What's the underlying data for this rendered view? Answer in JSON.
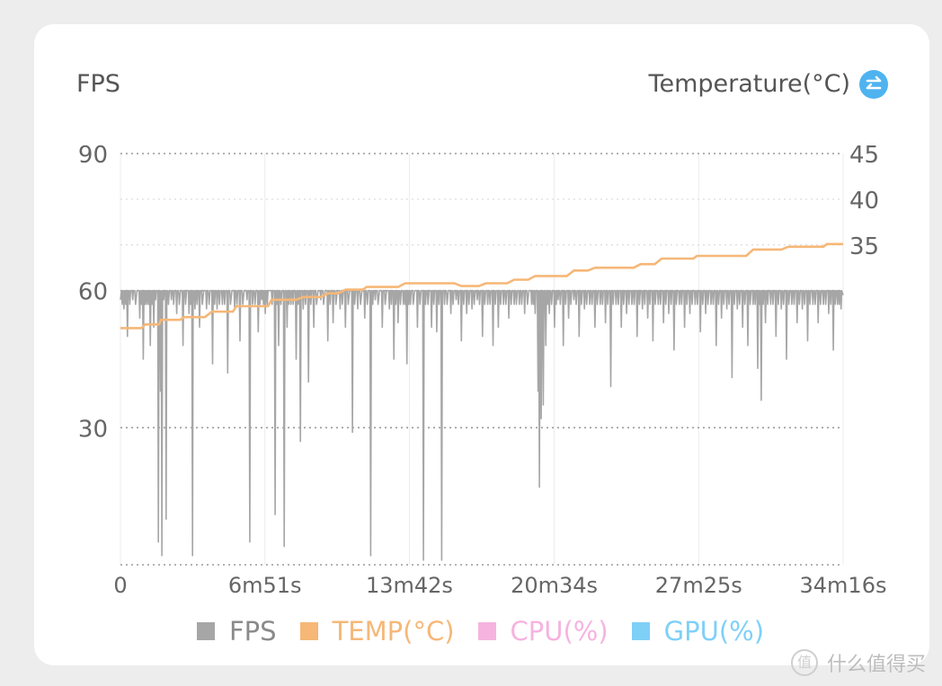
{
  "header": {
    "left_label": "FPS",
    "right_label": "Temperature(°C)"
  },
  "colors": {
    "fps": "#a6a6a6",
    "temp": "#f6b777",
    "cpu": "#f6b3e0",
    "gpu": "#7fd0f7",
    "swap_button": "#4fb3f0"
  },
  "legend": [
    {
      "label": "FPS",
      "color": "#a6a6a6",
      "text_color": "#8a8a8a"
    },
    {
      "label": "TEMP(°C)",
      "color": "#f6b777",
      "text_color": "#f6b777"
    },
    {
      "label": "CPU(%)",
      "color": "#f6b3e0",
      "text_color": "#f6b3e0"
    },
    {
      "label": "GPU(%)",
      "color": "#7fd0f7",
      "text_color": "#7fd0f7"
    }
  ],
  "watermark": "什么值得买",
  "chart_data": {
    "type": "line",
    "x_unit": "seconds",
    "xlim": [
      0,
      2056
    ],
    "x_ticks": [
      {
        "value": 0,
        "label": "0"
      },
      {
        "value": 411,
        "label": "6m51s"
      },
      {
        "value": 822,
        "label": "13m42s"
      },
      {
        "value": 1234,
        "label": "20m34s"
      },
      {
        "value": 1645,
        "label": "27m25s"
      },
      {
        "value": 2056,
        "label": "34m16s"
      }
    ],
    "y_left": {
      "label": "FPS",
      "lim": [
        0,
        90
      ],
      "ticks": [
        90,
        60,
        30
      ]
    },
    "y_right": {
      "label": "Temperature(°C)",
      "lim": [
        0,
        45
      ],
      "ticks": [
        45,
        40,
        35
      ]
    },
    "grid": true,
    "legend_position": "bottom",
    "series": [
      {
        "name": "FPS",
        "axis": "left",
        "baseline": 60,
        "dips": [
          [
            10,
            56
          ],
          [
            20,
            50
          ],
          [
            35,
            58
          ],
          [
            55,
            54
          ],
          [
            65,
            45
          ],
          [
            75,
            57
          ],
          [
            85,
            48
          ],
          [
            95,
            52
          ],
          [
            100,
            58
          ],
          [
            108,
            5
          ],
          [
            114,
            38
          ],
          [
            118,
            2
          ],
          [
            123,
            58
          ],
          [
            130,
            10
          ],
          [
            145,
            58
          ],
          [
            160,
            55
          ],
          [
            178,
            48
          ],
          [
            195,
            55
          ],
          [
            205,
            2
          ],
          [
            212,
            56
          ],
          [
            225,
            52
          ],
          [
            245,
            56
          ],
          [
            262,
            44
          ],
          [
            275,
            56
          ],
          [
            290,
            57
          ],
          [
            305,
            42
          ],
          [
            325,
            56
          ],
          [
            340,
            49
          ],
          [
            360,
            58
          ],
          [
            368,
            5
          ],
          [
            376,
            57
          ],
          [
            392,
            51
          ],
          [
            402,
            58
          ],
          [
            412,
            55
          ],
          [
            425,
            60
          ],
          [
            440,
            11
          ],
          [
            450,
            48
          ],
          [
            466,
            4
          ],
          [
            474,
            52
          ],
          [
            485,
            57
          ],
          [
            500,
            45
          ],
          [
            512,
            27
          ],
          [
            520,
            56
          ],
          [
            535,
            40
          ],
          [
            550,
            52
          ],
          [
            570,
            58
          ],
          [
            590,
            49
          ],
          [
            605,
            53
          ],
          [
            625,
            56
          ],
          [
            640,
            52
          ],
          [
            660,
            29
          ],
          [
            675,
            56
          ],
          [
            695,
            54
          ],
          [
            712,
            2
          ],
          [
            725,
            58
          ],
          [
            745,
            52
          ],
          [
            765,
            56
          ],
          [
            778,
            45
          ],
          [
            790,
            53
          ],
          [
            805,
            57
          ],
          [
            815,
            44
          ],
          [
            825,
            57
          ],
          [
            845,
            52
          ],
          [
            862,
            1
          ],
          [
            868,
            57
          ],
          [
            885,
            52
          ],
          [
            900,
            51
          ],
          [
            914,
            1
          ],
          [
            922,
            57
          ],
          [
            940,
            55
          ],
          [
            955,
            58
          ],
          [
            970,
            49
          ],
          [
            985,
            55
          ],
          [
            1000,
            56
          ],
          [
            1015,
            58
          ],
          [
            1030,
            50
          ],
          [
            1045,
            57
          ],
          [
            1060,
            48
          ],
          [
            1075,
            52
          ],
          [
            1090,
            57
          ],
          [
            1105,
            54
          ],
          [
            1120,
            57
          ],
          [
            1135,
            57
          ],
          [
            1150,
            55
          ],
          [
            1170,
            57
          ],
          [
            1180,
            55
          ],
          [
            1188,
            38
          ],
          [
            1192,
            17
          ],
          [
            1197,
            32
          ],
          [
            1203,
            35
          ],
          [
            1210,
            48
          ],
          [
            1220,
            55
          ],
          [
            1235,
            52
          ],
          [
            1245,
            58
          ],
          [
            1260,
            48
          ],
          [
            1275,
            54
          ],
          [
            1290,
            58
          ],
          [
            1305,
            50
          ],
          [
            1320,
            56
          ],
          [
            1335,
            57
          ],
          [
            1350,
            52
          ],
          [
            1365,
            57
          ],
          [
            1380,
            53
          ],
          [
            1395,
            39
          ],
          [
            1410,
            57
          ],
          [
            1425,
            52
          ],
          [
            1440,
            55
          ],
          [
            1455,
            57
          ],
          [
            1470,
            50
          ],
          [
            1485,
            56
          ],
          [
            1500,
            54
          ],
          [
            1515,
            49
          ],
          [
            1530,
            57
          ],
          [
            1545,
            53
          ],
          [
            1560,
            55
          ],
          [
            1575,
            47
          ],
          [
            1590,
            57
          ],
          [
            1605,
            52
          ],
          [
            1620,
            55
          ],
          [
            1635,
            57
          ],
          [
            1650,
            51
          ],
          [
            1665,
            55
          ],
          [
            1680,
            57
          ],
          [
            1695,
            48
          ],
          [
            1710,
            54
          ],
          [
            1725,
            56
          ],
          [
            1740,
            41
          ],
          [
            1755,
            56
          ],
          [
            1770,
            52
          ],
          [
            1785,
            48
          ],
          [
            1800,
            57
          ],
          [
            1813,
            43
          ],
          [
            1823,
            36
          ],
          [
            1835,
            53
          ],
          [
            1850,
            57
          ],
          [
            1865,
            50
          ],
          [
            1880,
            56
          ],
          [
            1895,
            45
          ],
          [
            1910,
            57
          ],
          [
            1925,
            53
          ],
          [
            1940,
            56
          ],
          [
            1955,
            49
          ],
          [
            1970,
            57
          ],
          [
            1985,
            53
          ],
          [
            2000,
            57
          ],
          [
            2015,
            55
          ],
          [
            2028,
            47
          ],
          [
            2040,
            57
          ],
          [
            2050,
            56
          ]
        ]
      },
      {
        "name": "TEMP(°C)",
        "axis": "right",
        "points": [
          [
            0,
            25.9
          ],
          [
            60,
            25.9
          ],
          [
            70,
            26.3
          ],
          [
            110,
            26.3
          ],
          [
            115,
            26.8
          ],
          [
            170,
            26.8
          ],
          [
            180,
            27.1
          ],
          [
            240,
            27.1
          ],
          [
            260,
            27.7
          ],
          [
            320,
            27.7
          ],
          [
            330,
            28.3
          ],
          [
            420,
            28.3
          ],
          [
            430,
            29.0
          ],
          [
            500,
            29.0
          ],
          [
            520,
            29.3
          ],
          [
            570,
            29.3
          ],
          [
            590,
            29.7
          ],
          [
            620,
            29.7
          ],
          [
            640,
            30.1
          ],
          [
            690,
            30.1
          ],
          [
            700,
            30.4
          ],
          [
            790,
            30.4
          ],
          [
            810,
            30.8
          ],
          [
            950,
            30.8
          ],
          [
            970,
            30.5
          ],
          [
            1020,
            30.5
          ],
          [
            1040,
            30.8
          ],
          [
            1100,
            30.8
          ],
          [
            1120,
            31.2
          ],
          [
            1160,
            31.2
          ],
          [
            1180,
            31.6
          ],
          [
            1270,
            31.6
          ],
          [
            1290,
            32.2
          ],
          [
            1330,
            32.2
          ],
          [
            1350,
            32.5
          ],
          [
            1460,
            32.5
          ],
          [
            1480,
            32.9
          ],
          [
            1520,
            32.9
          ],
          [
            1540,
            33.5
          ],
          [
            1630,
            33.5
          ],
          [
            1640,
            33.8
          ],
          [
            1780,
            33.8
          ],
          [
            1800,
            34.5
          ],
          [
            1880,
            34.5
          ],
          [
            1900,
            34.8
          ],
          [
            2000,
            34.8
          ],
          [
            2010,
            35.1
          ],
          [
            2056,
            35.1
          ]
        ]
      },
      {
        "name": "CPU(%)",
        "axis": "left",
        "points": []
      },
      {
        "name": "GPU(%)",
        "axis": "left",
        "points": []
      }
    ]
  }
}
